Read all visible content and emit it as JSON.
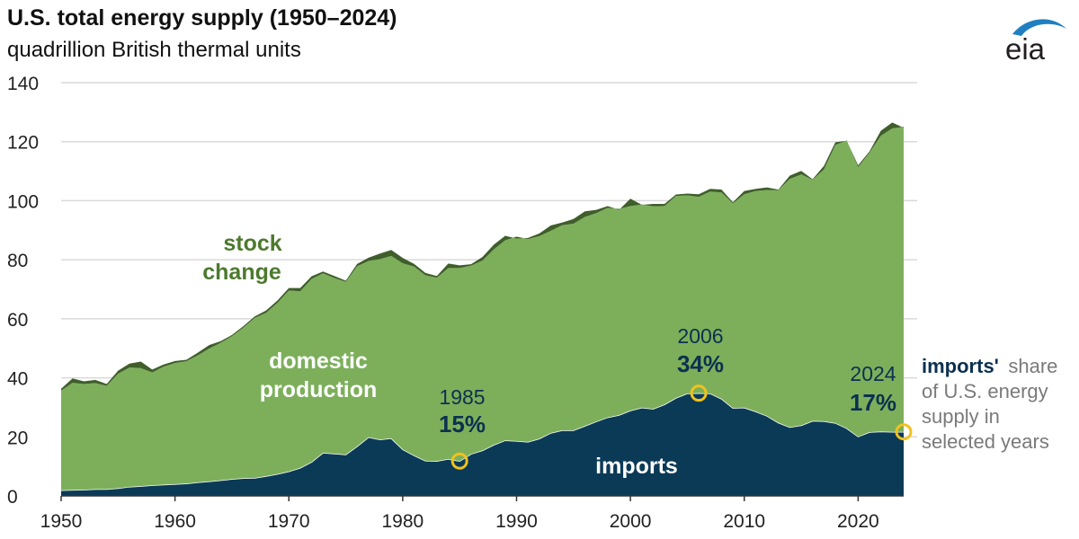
{
  "header": {
    "title": "U.S. total energy supply (1950–2024)",
    "subtitle": "quadrillion British thermal units"
  },
  "logo": {
    "text": "eia"
  },
  "colors": {
    "imports": "#0b3a57",
    "domestic_production": "#7daf5b",
    "stock_change": "#3f5e2a",
    "gridline": "#d9d9d9",
    "highlight_ring": "#f1c21b"
  },
  "labels": {
    "stock_line1": "stock",
    "stock_line2": "change",
    "domestic_line1": "domestic",
    "domestic_line2": "production",
    "imports": "imports"
  },
  "annotations": [
    {
      "year": "1985",
      "pct": "15%"
    },
    {
      "year": "2006",
      "pct": "34%"
    },
    {
      "year": "2024",
      "pct": "17%"
    }
  ],
  "side_note": {
    "bold": "imports'",
    "line1_rest": "share",
    "line2": "of U.S. energy",
    "line3": "supply in",
    "line4": "selected years"
  },
  "chart_data": {
    "type": "area",
    "title": "U.S. total energy supply (1950–2024)",
    "ylabel": "quadrillion British thermal units",
    "xlim": [
      1950,
      2024
    ],
    "ylim": [
      0,
      140
    ],
    "x_ticks": [
      1950,
      1960,
      1970,
      1980,
      1990,
      2000,
      2010,
      2020
    ],
    "y_ticks": [
      0,
      20,
      40,
      60,
      80,
      100,
      120,
      140
    ],
    "grid": true,
    "x": [
      1950,
      1951,
      1952,
      1953,
      1954,
      1955,
      1956,
      1957,
      1958,
      1959,
      1960,
      1961,
      1962,
      1963,
      1964,
      1965,
      1966,
      1967,
      1968,
      1969,
      1970,
      1971,
      1972,
      1973,
      1974,
      1975,
      1976,
      1977,
      1978,
      1979,
      1980,
      1981,
      1982,
      1983,
      1984,
      1985,
      1986,
      1987,
      1988,
      1989,
      1990,
      1991,
      1992,
      1993,
      1994,
      1995,
      1996,
      1997,
      1998,
      1999,
      2000,
      2001,
      2002,
      2003,
      2004,
      2005,
      2006,
      2007,
      2008,
      2009,
      2010,
      2011,
      2012,
      2013,
      2014,
      2015,
      2016,
      2017,
      2018,
      2019,
      2020,
      2021,
      2022,
      2023,
      2024
    ],
    "series": [
      {
        "name": "imports",
        "values": [
          1.9,
          2.0,
          2.1,
          2.3,
          2.3,
          2.6,
          3.1,
          3.3,
          3.6,
          3.8,
          4.0,
          4.2,
          4.6,
          4.9,
          5.3,
          5.7,
          6.0,
          6.1,
          6.7,
          7.4,
          8.3,
          9.5,
          11.5,
          14.6,
          14.3,
          14.0,
          16.8,
          19.9,
          19.1,
          19.5,
          15.8,
          13.7,
          11.9,
          11.8,
          12.5,
          11.8,
          14.2,
          15.4,
          17.3,
          18.8,
          18.6,
          18.3,
          19.4,
          21.3,
          22.2,
          22.2,
          23.7,
          25.2,
          26.6,
          27.4,
          28.9,
          29.9,
          29.5,
          31.0,
          33.2,
          34.7,
          34.8,
          34.7,
          32.9,
          29.8,
          29.9,
          28.6,
          27.1,
          24.8,
          23.3,
          23.9,
          25.4,
          25.3,
          24.7,
          22.9,
          20.1,
          21.6,
          21.8,
          21.7,
          21.7
        ]
      },
      {
        "name": "domestic production",
        "values": [
          33.8,
          36.3,
          35.8,
          35.9,
          35.0,
          38.8,
          40.4,
          40.0,
          38.2,
          40.0,
          41.0,
          41.4,
          43.0,
          45.0,
          46.5,
          48.4,
          51.0,
          54.2,
          55.3,
          58.0,
          61.3,
          59.8,
          62.0,
          60.8,
          59.5,
          58.5,
          61.0,
          59.7,
          61.1,
          61.8,
          63.0,
          64.0,
          62.8,
          62.1,
          64.7,
          65.4,
          63.8,
          64.3,
          66.2,
          67.8,
          69.2,
          68.7,
          68.6,
          68.5,
          69.5,
          70.0,
          70.8,
          70.6,
          71.0,
          69.8,
          69.3,
          68.8,
          68.6,
          67.2,
          68.4,
          67.1,
          66.5,
          68.4,
          69.9,
          69.3,
          72.3,
          74.7,
          76.5,
          78.8,
          84.1,
          85.0,
          81.7,
          85.3,
          94.2,
          97.5,
          91.3,
          94.7,
          100.2,
          102.8,
          103.3
        ]
      },
      {
        "name": "stock change",
        "values": [
          0.6,
          1.5,
          0.9,
          1.1,
          0.6,
          1.0,
          1.3,
          2.2,
          1.0,
          0.7,
          0.7,
          0.5,
          0.9,
          1.2,
          0.6,
          0.4,
          0.5,
          0.5,
          0.8,
          0.8,
          0.8,
          1.1,
          0.9,
          0.6,
          0.7,
          0.4,
          0.8,
          1.1,
          1.9,
          2.0,
          1.8,
          0.9,
          0.8,
          0.6,
          1.5,
          0.9,
          0.5,
          1.2,
          1.6,
          1.5,
          -0.6,
          0.4,
          0.9,
          1.8,
          0.9,
          1.6,
          1.9,
          1.1,
          0.6,
          -0.3,
          2.5,
          -0.1,
          0.8,
          0.7,
          0.5,
          0.6,
          0.9,
          0.9,
          1.0,
          0.4,
          1.1,
          0.7,
          0.9,
          0.2,
          1.1,
          1.2,
          0.2,
          1.2,
          0.9,
          -0.1,
          0.6,
          0.4,
          1.7,
          2.0,
          -0.3
        ]
      }
    ],
    "annotations": [
      {
        "x": 1985,
        "label": "1985",
        "value": "15%"
      },
      {
        "x": 2006,
        "label": "2006",
        "value": "34%"
      },
      {
        "x": 2024,
        "label": "2024",
        "value": "17%"
      }
    ]
  }
}
